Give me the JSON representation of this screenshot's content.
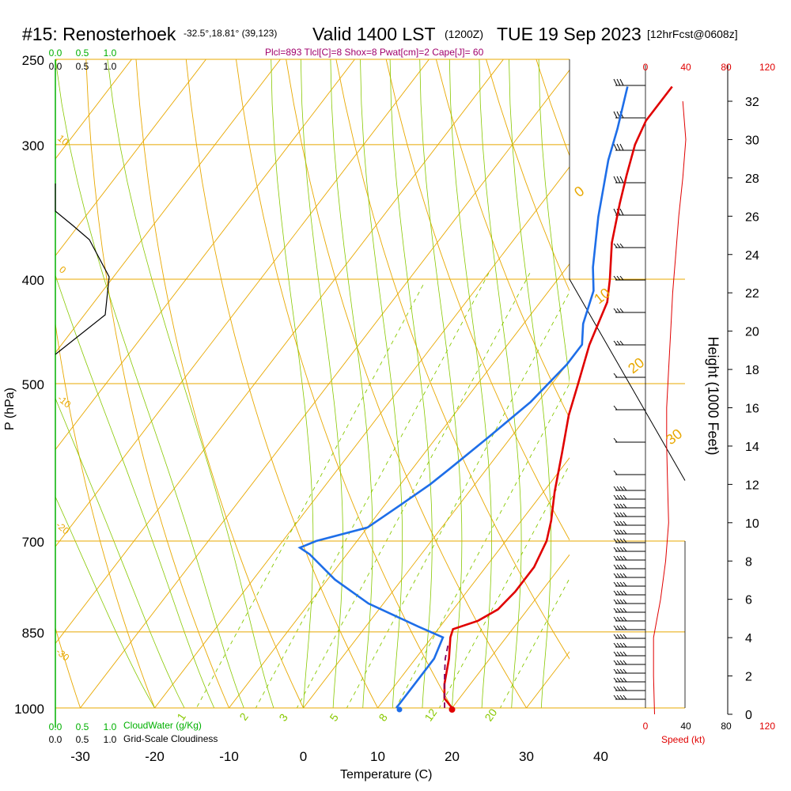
{
  "header": {
    "station": "#15: Renosterhoek",
    "coords": "-32.5°,18.81° (39,123)",
    "valid": "Valid 1400 LST",
    "utc": "(1200Z)",
    "date": "TUE 19 Sep 2023",
    "forecast": "[12hrFcst@0608z]",
    "indices": "Plcl=893 Tlcl[C]=8 Shox=8 Pwat[cm]=2 Cape[J]= 60"
  },
  "labels": {
    "xlabel": "Temperature (C)",
    "ylabel": "P (hPa)",
    "height_label": "Height (1000 Feet)",
    "speed_label": "Speed (kt)",
    "cloudwater_label": "CloudWater (g/Kg)",
    "cloudiness_label": "Grid-Scale Cloudiness"
  },
  "colors": {
    "temperature": "#e00000",
    "dewpoint": "#1e6ee8",
    "parcel": "#800060",
    "isotherm": "#e8a800",
    "dry_adiabat": "#e8a800",
    "moist_adiabat": "#88c800",
    "mixing_ratio": "#88c800",
    "cloudwater": "#00b000",
    "wind_speed": "#e00000"
  },
  "chart_data": {
    "type": "line",
    "x_axis": {
      "label": "Temperature (C)",
      "ticks": [
        -30,
        -20,
        -10,
        0,
        10,
        20,
        30,
        40
      ],
      "range": [
        -33,
        46
      ]
    },
    "y_axis": {
      "label": "P (hPa)",
      "scale": "log",
      "ticks": [
        1000,
        850,
        700,
        500,
        400,
        300,
        250
      ],
      "range": [
        1000,
        250
      ]
    },
    "height_axis": {
      "label": "Height (1000 Feet)",
      "ticks": [
        0,
        2,
        4,
        6,
        8,
        10,
        12,
        14,
        16,
        18,
        20,
        22,
        24,
        26,
        28,
        30,
        32
      ]
    },
    "top_labels": {
      "cloudwater_green": [
        "0.0",
        "0.5",
        "1.0"
      ],
      "cloudiness_black": [
        "0.0",
        "0.5",
        "1.0"
      ],
      "speed_top": [
        "0",
        "40",
        "80",
        "120"
      ]
    },
    "bottom_labels": {
      "cloudwater_green": [
        "0.0",
        "0.5",
        "1.0"
      ],
      "cloudiness_black": [
        "0.0",
        "0.5",
        "1.0"
      ],
      "speed_bottom": [
        "0",
        "40",
        "80",
        "120"
      ]
    },
    "isotherm_labels": [
      "0",
      "10",
      "20",
      "30"
    ],
    "dry_adiabat_labels": [
      "10",
      "0",
      "-10",
      "-20",
      "-30"
    ],
    "mixing_ratio_labels": [
      "1",
      "2",
      "3",
      "5",
      "8",
      "12",
      "20"
    ],
    "series": [
      {
        "name": "Temperature",
        "points": [
          [
            20,
            1000
          ],
          [
            18,
            980
          ],
          [
            16.5,
            950
          ],
          [
            14.5,
            900
          ],
          [
            12.5,
            860
          ],
          [
            12.0,
            845
          ],
          [
            14.5,
            830
          ],
          [
            16.0,
            810
          ],
          [
            16.5,
            780
          ],
          [
            16.5,
            740
          ],
          [
            15.5,
            700
          ],
          [
            14.0,
            670
          ],
          [
            11.5,
            630
          ],
          [
            8.5,
            580
          ],
          [
            5.5,
            535
          ],
          [
            3.5,
            500
          ],
          [
            1.0,
            460
          ],
          [
            -1.0,
            420
          ],
          [
            -3.0,
            400
          ],
          [
            -6.5,
            370
          ],
          [
            -9.5,
            340
          ],
          [
            -11.5,
            320
          ],
          [
            -13.5,
            300
          ],
          [
            -14.5,
            285
          ],
          [
            -14.5,
            265
          ]
        ]
      },
      {
        "name": "Dewpoint",
        "points": [
          [
            12.5,
            1000
          ],
          [
            12.5,
            985
          ],
          [
            12.5,
            950
          ],
          [
            12.5,
            900
          ],
          [
            11.5,
            860
          ],
          [
            7.0,
            840
          ],
          [
            -2.0,
            800
          ],
          [
            -9.0,
            760
          ],
          [
            -15.0,
            720
          ],
          [
            -17.0,
            710
          ],
          [
            -15.5,
            700
          ],
          [
            -10.0,
            680
          ],
          [
            -8.0,
            650
          ],
          [
            -6.0,
            620
          ],
          [
            -5.0,
            600
          ],
          [
            -3.0,
            560
          ],
          [
            -1.0,
            520
          ],
          [
            0.0,
            480
          ],
          [
            0.0,
            460
          ],
          [
            -2.0,
            440
          ],
          [
            -4.0,
            410
          ],
          [
            -6.5,
            390
          ],
          [
            -11.0,
            350
          ],
          [
            -15.5,
            310
          ],
          [
            -17.5,
            290
          ],
          [
            -20.5,
            265
          ]
        ]
      },
      {
        "name": "Parcel",
        "points": [
          [
            19.0,
            1000
          ],
          [
            17.5,
            970
          ],
          [
            15.5,
            930
          ],
          [
            14.0,
            900
          ],
          [
            13.0,
            875
          ]
        ]
      }
    ],
    "surface_points": {
      "temperature": 20,
      "dewpoint": 12.5
    },
    "wind_speed_profile_kt": [
      [
        0,
        9
      ],
      [
        2,
        8
      ],
      [
        4,
        8
      ],
      [
        6,
        15
      ],
      [
        8,
        20
      ],
      [
        10,
        23
      ],
      [
        12,
        22
      ],
      [
        14,
        21
      ],
      [
        16,
        21
      ],
      [
        18,
        23
      ],
      [
        20,
        25
      ],
      [
        22,
        27
      ],
      [
        24,
        30
      ],
      [
        26,
        33
      ],
      [
        28,
        37
      ],
      [
        30,
        40
      ],
      [
        32,
        37
      ]
    ]
  }
}
